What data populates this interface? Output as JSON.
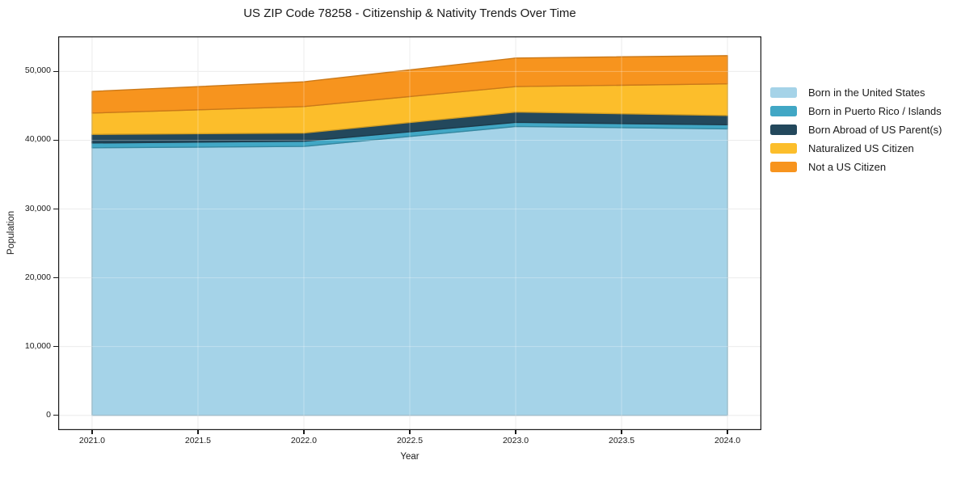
{
  "chart_data": {
    "type": "area",
    "stacked": true,
    "title": "US ZIP Code 78258 - Citizenship & Nativity Trends Over Time",
    "xlabel": "Year",
    "ylabel": "Population",
    "x": [
      2021,
      2022,
      2023,
      2024
    ],
    "series": [
      {
        "name": "Born in the United States",
        "color": "#A5D3E8",
        "values": [
          38900,
          39100,
          42000,
          41650
        ]
      },
      {
        "name": "Born in Puerto Rico / Islands",
        "color": "#41A7C5",
        "values": [
          700,
          750,
          600,
          600
        ]
      },
      {
        "name": "Born Abroad of US Parent(s)",
        "color": "#23485C",
        "values": [
          1250,
          1200,
          1500,
          1350
        ]
      },
      {
        "name": "Naturalized US Citizen",
        "color": "#FCBE2B",
        "values": [
          3100,
          3850,
          3700,
          4600
        ]
      },
      {
        "name": "Not a US Citizen",
        "color": "#F7941E",
        "values": [
          3150,
          3600,
          4150,
          4100
        ]
      }
    ],
    "totals": [
      47100,
      48500,
      51950,
      52300
    ],
    "xlim": [
      2020.84,
      2024.16
    ],
    "ylim": [
      -2150,
      55100
    ],
    "xticks": {
      "values": [
        2021.0,
        2021.5,
        2022.0,
        2022.5,
        2023.0,
        2023.5,
        2024.0
      ],
      "labels": [
        "2021.0",
        "2021.5",
        "2022.0",
        "2022.5",
        "2023.0",
        "2023.5",
        "2024.0"
      ]
    },
    "yticks": {
      "values": [
        0,
        10000,
        20000,
        30000,
        40000,
        50000
      ],
      "labels": [
        "0",
        "10,000",
        "20,000",
        "30,000",
        "40,000",
        "50,000"
      ]
    },
    "grid": true,
    "legend_position": "right-outside",
    "frame_color": "#1a1a1a",
    "grid_color": "#e4e4e4"
  }
}
